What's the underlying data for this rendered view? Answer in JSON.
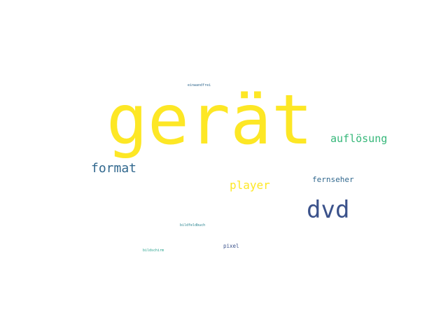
{
  "words": [
    {
      "key": "geraet",
      "text": "gerät",
      "color": "#fde725"
    },
    {
      "key": "dvd",
      "text": "dvd",
      "color": "#3b528b"
    },
    {
      "key": "format",
      "text": "format",
      "color": "#31688e"
    },
    {
      "key": "aufloesung",
      "text": "auflösung",
      "color": "#35b779"
    },
    {
      "key": "player",
      "text": "player",
      "color": "#fde725"
    },
    {
      "key": "fernseher",
      "text": "fernseher",
      "color": "#31688e"
    },
    {
      "key": "pixel",
      "text": "pixel",
      "color": "#3b528b"
    },
    {
      "key": "bildfeldbuch",
      "text": "bildfeldbuch",
      "color": "#26828e"
    },
    {
      "key": "bildschirm",
      "text": "bildschirm",
      "color": "#1f9e89"
    },
    {
      "key": "einwandfrei",
      "text": "einwandfrei",
      "color": "#31688e"
    }
  ]
}
